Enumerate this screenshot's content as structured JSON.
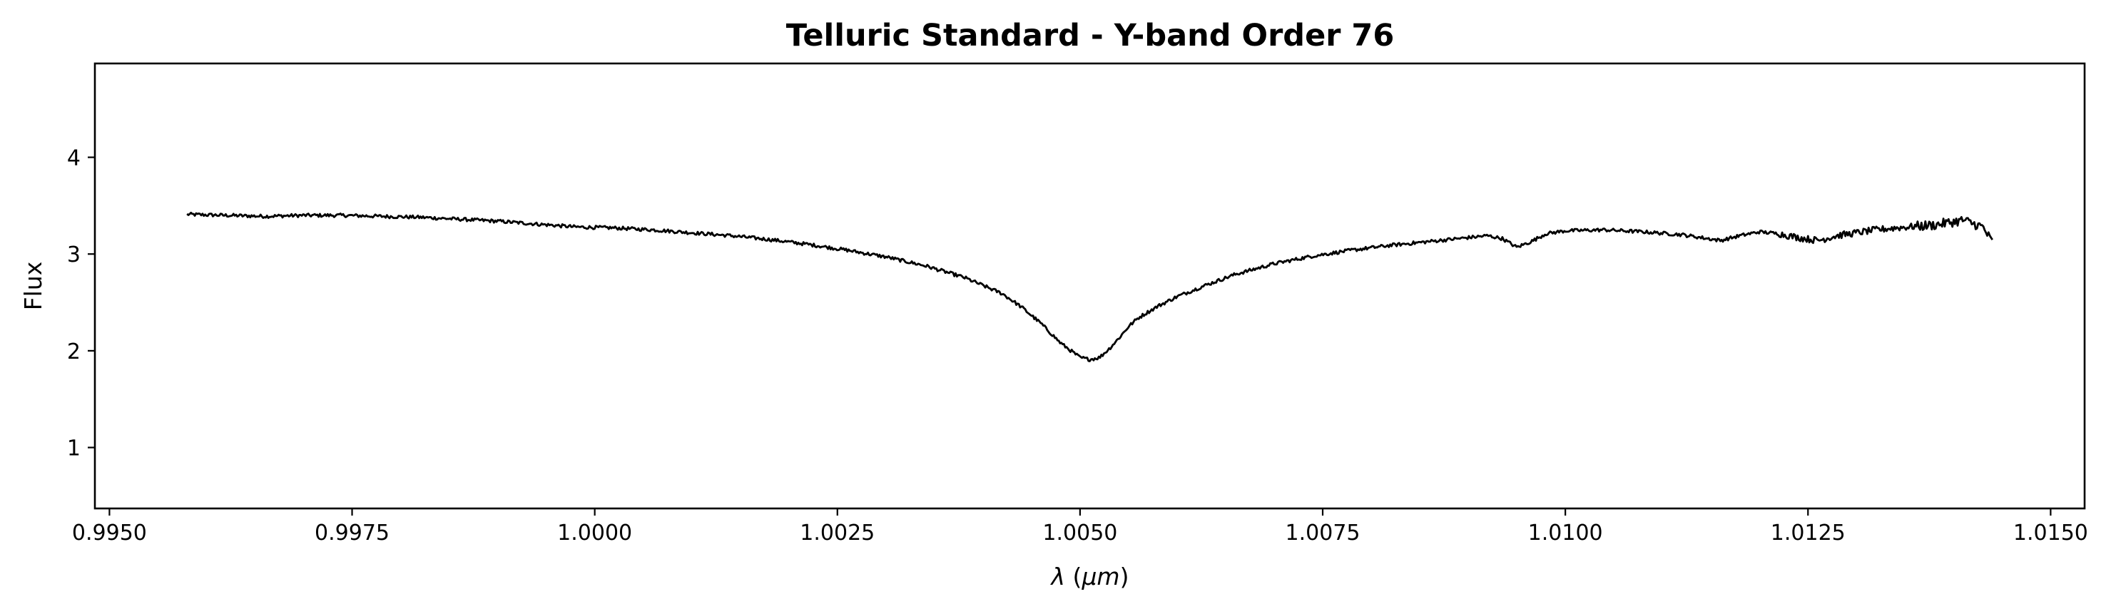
{
  "chart_data": {
    "type": "line",
    "title": "Telluric Standard - Y-band Order 76",
    "xlabel": "λ (μm)",
    "ylabel": "Flux",
    "xlim": [
      0.99485,
      1.01535
    ],
    "ylim": [
      0.37,
      4.97
    ],
    "xticks": [
      0.995,
      0.9975,
      1.0,
      1.0025,
      1.005,
      1.0075,
      1.01,
      1.0125,
      1.015
    ],
    "xtick_labels": [
      "0.9950",
      "0.9975",
      "1.0000",
      "1.0025",
      "1.0050",
      "1.0075",
      "1.0100",
      "1.0125",
      "1.0150"
    ],
    "yticks": [
      1,
      2,
      3,
      4
    ],
    "ytick_labels": [
      "1",
      "2",
      "3",
      "4"
    ],
    "grid": false,
    "line_color": "#000000",
    "series": [
      {
        "x": [
          0.9958,
          0.9962,
          0.9966,
          0.997,
          0.9974,
          0.9978,
          0.9982,
          0.9986,
          0.999,
          0.9994,
          0.9998,
          1.0002,
          1.0006,
          1.001,
          1.0014,
          1.0018,
          1.0022,
          1.0026,
          1.003,
          1.0034,
          1.0038,
          1.0042,
          1.0044,
          1.0046,
          1.0048,
          1.005,
          1.0051,
          1.0052,
          1.0053,
          1.0054,
          1.0055,
          1.0056,
          1.0058,
          1.006,
          1.0063,
          1.0066,
          1.007,
          1.0074,
          1.0078,
          1.0082,
          1.0086,
          1.009,
          1.0092,
          1.00935,
          1.0095,
          1.00965,
          1.0098,
          1.01,
          1.0104,
          1.0108,
          1.0112,
          1.0116,
          1.0118,
          1.012,
          1.0122,
          1.0124,
          1.0126,
          1.0128,
          1.013,
          1.0132,
          1.0134,
          1.0138,
          1.0141,
          1.0143,
          1.0144
        ],
        "y": [
          3.41,
          3.4,
          3.39,
          3.4,
          3.4,
          3.39,
          3.38,
          3.36,
          3.34,
          3.31,
          3.28,
          3.27,
          3.25,
          3.22,
          3.19,
          3.15,
          3.1,
          3.04,
          2.97,
          2.88,
          2.76,
          2.59,
          2.45,
          2.28,
          2.08,
          1.93,
          1.91,
          1.93,
          2.02,
          2.13,
          2.25,
          2.34,
          2.46,
          2.56,
          2.68,
          2.79,
          2.9,
          2.98,
          3.04,
          3.09,
          3.13,
          3.17,
          3.19,
          3.16,
          3.07,
          3.13,
          3.21,
          3.24,
          3.25,
          3.23,
          3.2,
          3.14,
          3.19,
          3.23,
          3.21,
          3.17,
          3.14,
          3.19,
          3.22,
          3.25,
          3.27,
          3.3,
          3.35,
          3.28,
          3.12
        ]
      }
    ]
  }
}
